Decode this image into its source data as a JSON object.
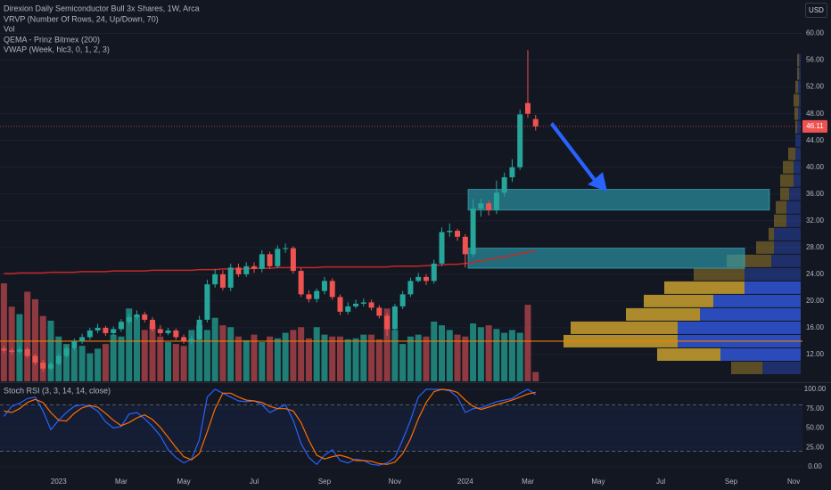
{
  "chart_data": {
    "type": "candlestick",
    "title": "Direxion Daily Semiconductor Bull 3x Shares, 1W, Arca",
    "indicators": [
      "VRVP (Number Of Rows, 24, Up/Down, 70)",
      "Vol",
      "QEMA - Prinz Bitmex (200)",
      "VWAP (Week, hlc3, 0, 1, 2, 3)"
    ],
    "currency": "USD",
    "last_price": 46.11,
    "categories": [
      null,
      null,
      null,
      null,
      null,
      null,
      null,
      "2023",
      null,
      null,
      null,
      null,
      null,
      null,
      null,
      "Mar",
      null,
      null,
      null,
      null,
      null,
      null,
      null,
      "May",
      null,
      null,
      null,
      null,
      null,
      null,
      null,
      null,
      "Jul",
      null,
      null,
      null,
      null,
      null,
      null,
      null,
      null,
      "Sep",
      null,
      null,
      null,
      null,
      null,
      null,
      null,
      null,
      "Nov",
      null,
      null,
      null,
      null,
      null,
      null,
      null,
      null,
      "2024",
      null,
      null,
      null,
      null,
      null,
      null,
      null,
      "Mar",
      null,
      null,
      null,
      null,
      null,
      null,
      null,
      null,
      "May",
      null,
      null,
      null,
      null,
      null,
      null,
      null,
      "Jul",
      null,
      null,
      null,
      null,
      null,
      null,
      null,
      null,
      "Sep",
      null,
      null,
      null,
      null,
      null,
      null,
      null,
      "Nov"
    ],
    "open": [
      12.9,
      12.6,
      12.4,
      12.8,
      11.8,
      10.8,
      9.9,
      10.6,
      11.8,
      12.9,
      14.0,
      14.6,
      15.6,
      16.0,
      15.2,
      15.8,
      16.9,
      17.6,
      18.0,
      17.2,
      15.8,
      15.2,
      15.6,
      14.6,
      14.0,
      14.3,
      17.2,
      22.5,
      24.0,
      22.0,
      25.0,
      24.0,
      25.2,
      24.8,
      27.0,
      25.2,
      27.8,
      27.9,
      24.5,
      21.0,
      20.3,
      21.5,
      23.0,
      20.6,
      18.4,
      19.2,
      19.6,
      19.8,
      19.0,
      17.8,
      15.8,
      19.2,
      21.0,
      23.0,
      23.6,
      23.0,
      25.6,
      30.3,
      30.5,
      29.6,
      27.0,
      33.8,
      34.6,
      33.6,
      36.2,
      38.5,
      40.0,
      49.6,
      47.2,
      null,
      null,
      null,
      null,
      null,
      null,
      null,
      null,
      null,
      null,
      null,
      null,
      null,
      null,
      null,
      null,
      null,
      null,
      null,
      null,
      null,
      null,
      null,
      null,
      null,
      null,
      null,
      null,
      null,
      null,
      null,
      null,
      null
    ],
    "high": [
      13.3,
      13.0,
      13.2,
      13.1,
      12.1,
      11.2,
      10.9,
      12.2,
      13.3,
      14.4,
      15.1,
      16.0,
      16.6,
      16.3,
      16.2,
      17.3,
      18.1,
      18.6,
      18.4,
      17.6,
      16.4,
      16.0,
      15.9,
      15.0,
      14.8,
      17.8,
      23.2,
      24.8,
      24.6,
      25.6,
      25.6,
      25.8,
      25.8,
      27.6,
      27.4,
      28.3,
      28.6,
      28.2,
      24.9,
      21.6,
      21.9,
      23.6,
      23.4,
      21.0,
      19.8,
      20.2,
      20.4,
      20.2,
      19.4,
      18.2,
      19.6,
      21.5,
      23.5,
      24.2,
      24.0,
      26.2,
      31.0,
      31.6,
      30.8,
      30.0,
      35.2,
      35.3,
      35.0,
      38.0,
      39.2,
      41.2,
      48.6,
      57.5,
      47.8,
      null,
      null,
      null,
      null,
      null,
      null,
      null,
      null,
      null,
      null,
      null,
      null,
      null,
      null,
      null,
      null,
      null,
      null,
      null,
      null,
      null,
      null,
      null,
      null,
      null,
      null,
      null,
      null,
      null,
      null,
      null,
      null,
      null
    ],
    "low": [
      12.2,
      12.0,
      12.1,
      11.5,
      10.4,
      9.4,
      9.6,
      10.3,
      11.5,
      12.6,
      13.6,
      14.2,
      15.2,
      14.8,
      14.8,
      15.4,
      16.5,
      17.2,
      16.8,
      15.4,
      14.8,
      14.9,
      14.2,
      13.6,
      13.6,
      14.0,
      16.8,
      22.0,
      21.6,
      21.5,
      23.6,
      23.6,
      24.2,
      24.3,
      24.8,
      24.9,
      27.2,
      24.1,
      20.6,
      19.8,
      19.8,
      21.0,
      20.2,
      17.9,
      18.0,
      18.9,
      19.2,
      18.6,
      17.4,
      14.8,
      15.6,
      18.8,
      20.6,
      22.8,
      22.4,
      22.6,
      25.2,
      29.6,
      29.0,
      25.0,
      26.6,
      32.6,
      32.8,
      33.0,
      35.6,
      37.8,
      39.6,
      47.4,
      45.5,
      null,
      null,
      null,
      null,
      null,
      null,
      null,
      null,
      null,
      null,
      null,
      null,
      null,
      null,
      null,
      null,
      null,
      null,
      null,
      null,
      null,
      null,
      null,
      null,
      null,
      null,
      null,
      null,
      null,
      null,
      null,
      null,
      null
    ],
    "close": [
      12.6,
      12.4,
      12.8,
      11.8,
      10.8,
      9.9,
      10.6,
      11.8,
      12.9,
      14.0,
      14.6,
      15.6,
      16.0,
      15.2,
      15.8,
      16.9,
      17.6,
      18.0,
      17.2,
      15.8,
      15.2,
      15.6,
      14.6,
      14.0,
      14.3,
      17.2,
      22.5,
      24.0,
      22.0,
      25.0,
      24.0,
      25.2,
      24.8,
      27.0,
      25.2,
      27.8,
      27.9,
      24.5,
      21.0,
      20.3,
      21.5,
      23.0,
      20.6,
      18.4,
      19.2,
      19.6,
      19.8,
      19.0,
      17.8,
      15.8,
      19.2,
      21.0,
      23.0,
      23.6,
      23.0,
      25.6,
      30.3,
      30.5,
      29.6,
      27.0,
      33.8,
      34.6,
      33.6,
      36.2,
      38.5,
      40.0,
      47.9,
      48.0,
      46.11,
      null,
      null,
      null,
      null,
      null,
      null,
      null,
      null,
      null,
      null,
      null,
      null,
      null,
      null,
      null,
      null,
      null,
      null,
      null,
      null,
      null,
      null,
      null,
      null,
      null,
      null,
      null,
      null,
      null,
      null,
      null,
      null,
      null
    ],
    "up_color": "#26a69a",
    "down_color": "#ef5350",
    "ylim": [
      8,
      65
    ],
    "yticks": [
      {
        "value": 12,
        "label": "12.00"
      },
      {
        "value": 16,
        "label": "16.00"
      },
      {
        "value": 20,
        "label": "20.00"
      },
      {
        "value": 24,
        "label": "24.00"
      },
      {
        "value": 28,
        "label": "28.00"
      },
      {
        "value": 32,
        "label": "32.00"
      },
      {
        "value": 36,
        "label": "36.00"
      },
      {
        "value": 40,
        "label": "40.00"
      },
      {
        "value": 44,
        "label": "44.00"
      },
      {
        "value": 48,
        "label": "48.00"
      },
      {
        "value": 52,
        "label": "52.00"
      },
      {
        "value": 56,
        "label": "56.00"
      },
      {
        "value": 60,
        "label": "60.00"
      }
    ],
    "grid": true,
    "qema": {
      "color": "#c62828",
      "values": [
        24.1,
        24.1,
        24.2,
        24.2,
        24.2,
        24.2,
        24.3,
        24.3,
        24.3,
        24.3,
        24.4,
        24.4,
        24.4,
        24.4,
        24.5,
        24.5,
        24.5,
        24.5,
        24.5,
        24.6,
        24.6,
        24.6,
        24.6,
        24.6,
        24.6,
        24.7,
        24.7,
        24.7,
        24.8,
        24.8,
        24.8,
        24.8,
        24.9,
        24.9,
        24.9,
        25.0,
        25.0,
        25.0,
        25.0,
        25.0,
        25.0,
        25.1,
        25.1,
        25.1,
        25.1,
        25.1,
        25.1,
        25.1,
        25.1,
        25.1,
        25.2,
        25.2,
        25.2,
        25.2,
        25.3,
        25.3,
        25.4,
        25.5,
        25.5,
        25.6,
        25.8,
        26.0,
        26.2,
        26.4,
        26.6,
        26.8,
        27.1,
        27.3,
        27.5,
        null,
        null,
        null,
        null,
        null,
        null,
        null,
        null,
        null,
        null,
        null,
        null,
        null,
        null,
        null,
        null,
        null,
        null,
        null,
        null,
        null,
        null,
        null,
        null,
        null,
        null,
        null,
        null,
        null,
        null,
        null,
        null,
        null
      ]
    },
    "hline": {
      "value": 14,
      "color": "#f57c00"
    },
    "zones": [
      {
        "low": 33.6,
        "high": 36.7
      },
      {
        "low": 24.9,
        "high": 27.9
      }
    ],
    "volume": {
      "up_color": "#1f7f76",
      "down_color": "#8e3a40",
      "values": [
        105,
        80,
        72,
        96,
        88,
        70,
        65,
        48,
        40,
        35,
        38,
        30,
        35,
        40,
        50,
        48,
        78,
        70,
        55,
        62,
        48,
        42,
        40,
        38,
        55,
        60,
        55,
        68,
        60,
        58,
        48,
        44,
        50,
        42,
        48,
        46,
        52,
        55,
        58,
        46,
        58,
        50,
        48,
        48,
        45,
        46,
        50,
        50,
        45,
        78,
        55,
        40,
        48,
        50,
        48,
        64,
        60,
        55,
        50,
        48,
        62,
        58,
        60,
        56,
        52,
        55,
        52,
        82,
        10,
        null,
        null,
        null,
        null,
        null,
        null,
        null,
        null,
        null,
        null,
        null,
        null,
        null,
        null,
        null,
        null,
        null,
        null,
        null,
        null,
        null,
        null,
        null,
        null,
        null,
        null,
        null,
        null,
        null,
        null,
        null,
        null,
        null
      ]
    },
    "volume_profile": {
      "up_color": "#c9a02e",
      "down_color": "#2f55d4",
      "value_area": [
        11,
        23
      ],
      "bins": [
        9,
        11,
        13,
        15,
        17,
        19,
        21,
        23,
        25,
        27,
        29,
        31,
        33,
        35,
        37,
        39,
        41,
        43,
        45,
        47,
        49,
        51,
        53,
        55,
        57
      ],
      "up": [
        35,
        71,
        128,
        120,
        83,
        78,
        90,
        57,
        50,
        20,
        6,
        14,
        12,
        10,
        15,
        12,
        8,
        0,
        2,
        4,
        6,
        3,
        2,
        2
      ],
      "down": [
        43,
        90,
        138,
        138,
        113,
        98,
        63,
        63,
        33,
        30,
        30,
        16,
        16,
        13,
        8,
        8,
        6,
        6,
        4,
        3,
        2,
        3,
        2,
        2
      ]
    },
    "stoch": {
      "title": "Stoch RSI (3, 3, 14, 14, close)",
      "ylim": [
        -7,
        108
      ],
      "yticks": [
        {
          "value": 0,
          "label": "0.00"
        },
        {
          "value": 25,
          "label": "25.00"
        },
        {
          "value": 50,
          "label": "50.00"
        },
        {
          "value": 75,
          "label": "75.00"
        },
        {
          "value": 100,
          "label": "100.00"
        }
      ],
      "bands": [
        20,
        80
      ],
      "series": [
        {
          "color": "#2962ff",
          "values": [
            65,
            78,
            82,
            88,
            90,
            72,
            48,
            60,
            70,
            78,
            80,
            78,
            72,
            58,
            50,
            52,
            68,
            70,
            62,
            52,
            40,
            22,
            12,
            5,
            10,
            35,
            90,
            100,
            95,
            90,
            85,
            84,
            85,
            80,
            70,
            75,
            80,
            60,
            30,
            12,
            3,
            15,
            22,
            8,
            5,
            10,
            8,
            3,
            2,
            5,
            12,
            35,
            60,
            90,
            100,
            100,
            100,
            98,
            90,
            70,
            75,
            76,
            80,
            84,
            86,
            88,
            95,
            100,
            93,
            null,
            null,
            null,
            null,
            null,
            null,
            null,
            null,
            null,
            null,
            null,
            null,
            null,
            null,
            null,
            null,
            null,
            null,
            null,
            null,
            null,
            null,
            null,
            null,
            null,
            null,
            null,
            null,
            null,
            null,
            null,
            null,
            null
          ]
        },
        {
          "color": "#ff6d00",
          "values": [
            72,
            70,
            75,
            83,
            87,
            83,
            70,
            60,
            59,
            69,
            76,
            79,
            77,
            69,
            60,
            53,
            57,
            63,
            67,
            61,
            51,
            38,
            25,
            13,
            9,
            17,
            45,
            75,
            95,
            95,
            90,
            86,
            85,
            83,
            78,
            75,
            75,
            72,
            57,
            34,
            15,
            10,
            13,
            15,
            12,
            8,
            8,
            7,
            4,
            3,
            6,
            17,
            36,
            62,
            83,
            97,
            100,
            99,
            96,
            86,
            78,
            74,
            77,
            80,
            83,
            86,
            90,
            94,
            96,
            null,
            null,
            null,
            null,
            null,
            null,
            null,
            null,
            null,
            null,
            null,
            null,
            null,
            null,
            null,
            null,
            null,
            null,
            null,
            null,
            null,
            null,
            null,
            null,
            null,
            null,
            null,
            null,
            null,
            null,
            null,
            null,
            null
          ]
        }
      ]
    }
  }
}
